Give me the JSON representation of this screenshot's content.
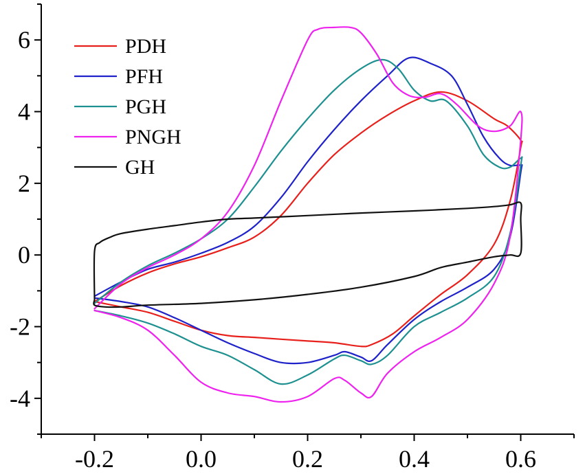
{
  "chart_data": {
    "type": "line",
    "title": "",
    "xlabel": "",
    "ylabel": "",
    "xlim": [
      -0.3,
      0.7
    ],
    "ylim": [
      -5,
      7
    ],
    "x_ticks": [
      -0.2,
      0.0,
      0.2,
      0.4,
      0.6
    ],
    "x_tick_labels": [
      "-0.2",
      "0.0",
      "0.2",
      "0.4",
      "0.6"
    ],
    "y_ticks": [
      -4,
      -2,
      0,
      2,
      4,
      6
    ],
    "y_tick_labels": [
      "-4",
      "-2",
      "0",
      "2",
      "4",
      "6"
    ],
    "grid": false,
    "legend_position": "top-left",
    "series": [
      {
        "name": "PDH",
        "color": "#e8201c",
        "x": [
          -0.2,
          -0.15,
          -0.1,
          -0.05,
          0.0,
          0.05,
          0.1,
          0.15,
          0.2,
          0.25,
          0.3,
          0.35,
          0.4,
          0.45,
          0.5,
          0.55,
          0.575,
          0.6,
          0.6,
          0.58,
          0.55,
          0.5,
          0.45,
          0.4,
          0.36,
          0.32,
          0.3,
          0.25,
          0.2,
          0.15,
          0.1,
          0.05,
          0.0,
          -0.05,
          -0.1,
          -0.15,
          -0.2
        ],
        "y": [
          -1.3,
          -0.85,
          -0.5,
          -0.25,
          -0.05,
          0.2,
          0.5,
          1.1,
          2.0,
          2.8,
          3.4,
          3.9,
          4.3,
          4.55,
          4.3,
          3.8,
          3.6,
          3.2,
          3.0,
          1.5,
          0.3,
          -0.55,
          -1.1,
          -1.7,
          -2.2,
          -2.5,
          -2.55,
          -2.45,
          -2.4,
          -2.35,
          -2.3,
          -2.25,
          -2.1,
          -1.85,
          -1.6,
          -1.45,
          -1.3
        ]
      },
      {
        "name": "PFH",
        "color": "#1e22c8",
        "x": [
          -0.2,
          -0.15,
          -0.1,
          -0.05,
          0.0,
          0.05,
          0.1,
          0.15,
          0.2,
          0.25,
          0.3,
          0.35,
          0.39,
          0.43,
          0.47,
          0.5,
          0.53,
          0.56,
          0.58,
          0.6,
          0.6,
          0.58,
          0.55,
          0.5,
          0.45,
          0.4,
          0.35,
          0.32,
          0.3,
          0.27,
          0.25,
          0.2,
          0.15,
          0.1,
          0.05,
          0.0,
          -0.05,
          -0.1,
          -0.15,
          -0.2
        ],
        "y": [
          -1.15,
          -0.75,
          -0.4,
          -0.2,
          0.05,
          0.35,
          0.8,
          1.6,
          2.6,
          3.5,
          4.3,
          5.0,
          5.5,
          5.35,
          5.0,
          4.2,
          3.3,
          2.7,
          2.5,
          2.5,
          2.3,
          0.5,
          -0.4,
          -0.9,
          -1.3,
          -1.8,
          -2.5,
          -2.95,
          -2.85,
          -2.7,
          -2.8,
          -3.0,
          -3.0,
          -2.75,
          -2.45,
          -2.1,
          -1.75,
          -1.45,
          -1.3,
          -1.2
        ]
      },
      {
        "name": "PGH",
        "color": "#1e9090",
        "x": [
          -0.2,
          -0.15,
          -0.1,
          -0.05,
          0.0,
          0.05,
          0.1,
          0.15,
          0.2,
          0.25,
          0.3,
          0.34,
          0.37,
          0.4,
          0.43,
          0.46,
          0.5,
          0.53,
          0.56,
          0.58,
          0.6,
          0.6,
          0.58,
          0.55,
          0.5,
          0.45,
          0.4,
          0.35,
          0.32,
          0.3,
          0.27,
          0.25,
          0.2,
          0.15,
          0.1,
          0.05,
          0.0,
          -0.05,
          -0.1,
          -0.15,
          -0.2
        ],
        "y": [
          -1.35,
          -0.75,
          -0.3,
          0.05,
          0.45,
          1.0,
          1.9,
          2.9,
          3.8,
          4.6,
          5.2,
          5.45,
          5.2,
          4.6,
          4.3,
          4.3,
          3.6,
          2.8,
          2.45,
          2.45,
          2.7,
          2.5,
          0.6,
          -0.6,
          -1.2,
          -1.6,
          -2.0,
          -2.8,
          -3.05,
          -2.95,
          -2.8,
          -2.9,
          -3.35,
          -3.6,
          -3.2,
          -2.8,
          -2.55,
          -2.2,
          -1.9,
          -1.7,
          -1.55
        ]
      },
      {
        "name": "PNGH",
        "color": "#ee22ee",
        "x": [
          -0.2,
          -0.15,
          -0.1,
          -0.05,
          0.0,
          0.05,
          0.1,
          0.15,
          0.2,
          0.22,
          0.25,
          0.28,
          0.3,
          0.33,
          0.36,
          0.39,
          0.42,
          0.45,
          0.48,
          0.52,
          0.55,
          0.58,
          0.6,
          0.6,
          0.58,
          0.55,
          0.5,
          0.45,
          0.4,
          0.35,
          0.32,
          0.3,
          0.27,
          0.25,
          0.2,
          0.15,
          0.1,
          0.05,
          0.0,
          -0.05,
          -0.1,
          -0.15,
          -0.2
        ],
        "y": [
          -1.5,
          -0.8,
          -0.35,
          0.0,
          0.45,
          1.2,
          2.5,
          4.3,
          6.0,
          6.3,
          6.35,
          6.35,
          6.2,
          5.6,
          4.8,
          4.45,
          4.4,
          4.5,
          4.2,
          3.6,
          3.45,
          3.6,
          4.0,
          3.2,
          0.5,
          -0.8,
          -1.8,
          -2.3,
          -2.7,
          -3.3,
          -3.95,
          -3.85,
          -3.5,
          -3.45,
          -3.95,
          -4.1,
          -3.95,
          -3.85,
          -3.55,
          -2.8,
          -2.1,
          -1.75,
          -1.55
        ]
      },
      {
        "name": "GH",
        "color": "#111111",
        "x": [
          -0.2,
          -0.2,
          -0.19,
          -0.17,
          -0.15,
          -0.1,
          -0.05,
          0.0,
          0.05,
          0.1,
          0.2,
          0.3,
          0.4,
          0.5,
          0.55,
          0.58,
          0.6,
          0.6,
          0.6,
          0.58,
          0.55,
          0.5,
          0.45,
          0.4,
          0.3,
          0.2,
          0.1,
          0.0,
          -0.1,
          -0.15,
          -0.18,
          -0.2,
          -0.2
        ],
        "y": [
          -1.25,
          0.1,
          0.35,
          0.5,
          0.6,
          0.72,
          0.82,
          0.92,
          1.0,
          1.03,
          1.1,
          1.17,
          1.23,
          1.3,
          1.35,
          1.4,
          1.45,
          1.0,
          0.05,
          0.0,
          -0.05,
          -0.2,
          -0.35,
          -0.6,
          -0.9,
          -1.1,
          -1.25,
          -1.35,
          -1.4,
          -1.45,
          -1.45,
          -1.4,
          -1.25
        ]
      }
    ]
  }
}
